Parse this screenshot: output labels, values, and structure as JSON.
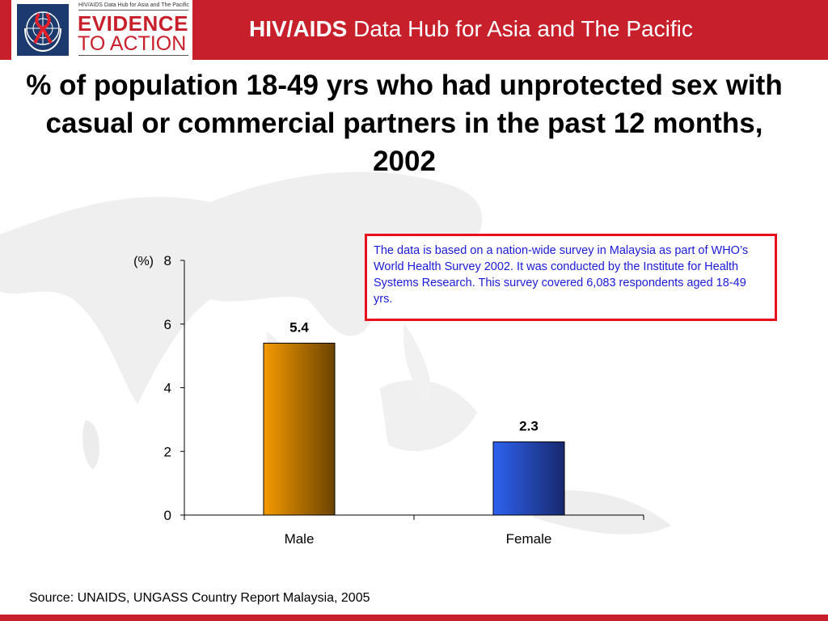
{
  "header": {
    "logo_tagline": "HIV/AIDS Data Hub for Asia and The Pacific",
    "logo_line1": "EVIDENCE",
    "logo_line2": "TO ACTION",
    "title_bold": "HIV/AIDS",
    "title_rest": " Data Hub for Asia and The Pacific"
  },
  "note": "The data is based on a nation-wide survey in Malaysia as part of WHO’s World Health Survey 2002. It was conducted by the Institute for Health Systems Research. This survey covered 6,083 respondents aged 18-49 yrs.",
  "source": "Source: UNAIDS, UNGASS Country Report Malaysia, 2005",
  "colors": {
    "brand": "#c8202b",
    "male": "#f59a00",
    "female": "#2f62f0",
    "note_text": "#1a1ad8",
    "note_border": "#e8101a"
  },
  "chart_data": {
    "type": "bar",
    "title": "% of population 18-49 yrs who had unprotected sex with casual or commercial partners in the past 12 months, 2002",
    "categories": [
      "Male",
      "Female"
    ],
    "values": [
      5.4,
      2.3
    ],
    "data_labels": [
      "5.4",
      "2.3"
    ],
    "ylabel": "(%)",
    "xlabel": "",
    "ylim": [
      0,
      8
    ],
    "yticks": [
      0,
      2,
      4,
      6,
      8
    ],
    "grid": false
  }
}
